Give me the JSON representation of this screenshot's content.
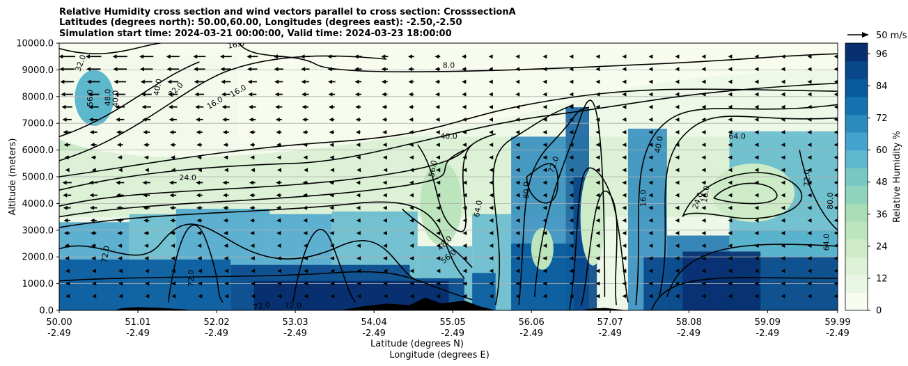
{
  "chart_data": {
    "type": "contour",
    "title_lines": [
      "Relative Humidity cross section and wind vectors parallel to cross section: CrosssectionA",
      "Latitudes (degrees north): 50.00,60.00, Longitudes (degrees east): -2.50,-2.50",
      "Simulation start time: 2024-03-21 00:00:00, Valid time: 2024-03-23 18:00:00"
    ],
    "xlabel": "Latitude (degrees N)",
    "xlabel2": "Longitude (degrees E)",
    "ylabel": "Altitude (meters)",
    "x_ticks": [
      {
        "lat": "50.00",
        "lon": "-2.49",
        "value": 50.0
      },
      {
        "lat": "51.01",
        "lon": "-2.49",
        "value": 51.01
      },
      {
        "lat": "52.02",
        "lon": "-2.49",
        "value": 52.02
      },
      {
        "lat": "53.03",
        "lon": "-2.49",
        "value": 53.03
      },
      {
        "lat": "54.04",
        "lon": "-2.49",
        "value": 54.04
      },
      {
        "lat": "55.05",
        "lon": "-2.49",
        "value": 55.05
      },
      {
        "lat": "56.06",
        "lon": "-2.49",
        "value": 56.06
      },
      {
        "lat": "57.07",
        "lon": "-2.49",
        "value": 57.07
      },
      {
        "lat": "58.08",
        "lon": "-2.49",
        "value": 58.08
      },
      {
        "lat": "59.09",
        "lon": "-2.49",
        "value": 59.09
      },
      {
        "lat": "59.99",
        "lon": "-2.49",
        "value": 59.99
      }
    ],
    "xlim": [
      50.0,
      59.99
    ],
    "y_ticks": [
      {
        "label": "0.0",
        "value": 0
      },
      {
        "label": "1000.0",
        "value": 1000
      },
      {
        "label": "2000.0",
        "value": 2000
      },
      {
        "label": "3000.0",
        "value": 3000
      },
      {
        "label": "4000.0",
        "value": 4000
      },
      {
        "label": "5000.0",
        "value": 5000
      },
      {
        "label": "6000.0",
        "value": 6000
      },
      {
        "label": "7000.0",
        "value": 7000
      },
      {
        "label": "8000.0",
        "value": 8000
      },
      {
        "label": "9000.0",
        "value": 9000
      },
      {
        "label": "10000.0",
        "value": 10000
      }
    ],
    "ylim": [
      0,
      10000
    ],
    "grid": "horizontal",
    "colorbar": {
      "label": "Relative Humidity %",
      "ticks": [
        "0",
        "12",
        "24",
        "36",
        "48",
        "60",
        "72",
        "84",
        "96"
      ],
      "range": [
        0,
        100
      ],
      "colors": [
        "#f7fcf0",
        "#e9f6e3",
        "#dcf1d6",
        "#cdebc7",
        "#bde5bd",
        "#a8ddb5",
        "#8fd3bd",
        "#78c8c4",
        "#5db7cd",
        "#44a3cc",
        "#2c8bbe",
        "#1672af",
        "#085a9c",
        "#08478a",
        "#083070"
      ]
    },
    "wind_key": {
      "label": "50 m/s"
    },
    "contour_labels": [
      {
        "text": "32.0",
        "x": 50.28,
        "y": 9250,
        "rot": -70
      },
      {
        "text": "16.0",
        "x": 52.27,
        "y": 9930,
        "rot": -10
      },
      {
        "text": "8.0",
        "x": 55.0,
        "y": 9150,
        "rot": 0
      },
      {
        "text": "56.0",
        "x": 50.4,
        "y": 7950,
        "rot": -90
      },
      {
        "text": "48.0",
        "x": 50.63,
        "y": 7970,
        "rot": -90
      },
      {
        "text": "40.0",
        "x": 50.73,
        "y": 7920,
        "rot": -90
      },
      {
        "text": "40.0",
        "x": 51.27,
        "y": 8350,
        "rot": -80
      },
      {
        "text": "32.0",
        "x": 51.5,
        "y": 8250,
        "rot": -45
      },
      {
        "text": "16.0",
        "x": 52.0,
        "y": 7750,
        "rot": -30
      },
      {
        "text": "16.0",
        "x": 52.3,
        "y": 8200,
        "rot": -30
      },
      {
        "text": "24.0",
        "x": 51.65,
        "y": 4950,
        "rot": 0
      },
      {
        "text": "40.0",
        "x": 55.0,
        "y": 6500,
        "rot": 0
      },
      {
        "text": "64.0",
        "x": 58.7,
        "y": 6500,
        "rot": 0
      },
      {
        "text": "56.0",
        "x": 54.8,
        "y": 5300,
        "rot": -80
      },
      {
        "text": "64.0",
        "x": 55.38,
        "y": 3800,
        "rot": -80
      },
      {
        "text": "80.0",
        "x": 56.0,
        "y": 4500,
        "rot": -90
      },
      {
        "text": "72.0",
        "x": 56.35,
        "y": 5450,
        "rot": -70
      },
      {
        "text": "72.0",
        "x": 59.6,
        "y": 4950,
        "rot": -90
      },
      {
        "text": "80.0",
        "x": 59.9,
        "y": 4100,
        "rot": -90
      },
      {
        "text": "64.0",
        "x": 59.85,
        "y": 2550,
        "rot": -90
      },
      {
        "text": "72.0",
        "x": 50.6,
        "y": 2100,
        "rot": -80
      },
      {
        "text": "72.0",
        "x": 51.7,
        "y": 1200,
        "rot": -90
      },
      {
        "text": "48.0",
        "x": 54.95,
        "y": 2500,
        "rot": -45
      },
      {
        "text": "56.0",
        "x": 55.0,
        "y": 2000,
        "rot": -40
      },
      {
        "text": "72.0",
        "x": 53.0,
        "y": 150,
        "rot": 0
      },
      {
        "text": "72.0",
        "x": 52.6,
        "y": 150,
        "rot": -10
      },
      {
        "text": "16.0",
        "x": 57.5,
        "y": 4200,
        "rot": -90
      },
      {
        "text": "24.0",
        "x": 58.2,
        "y": 4100,
        "rot": -70
      },
      {
        "text": "16.0",
        "x": 58.3,
        "y": 4350,
        "rot": -80
      },
      {
        "text": "40.0",
        "x": 57.7,
        "y": 6200,
        "rot": -80
      }
    ],
    "wind_vectors": "mostly westward (pointing toward lower latitude), strongest in upper-left region, weakening toward the right"
  }
}
